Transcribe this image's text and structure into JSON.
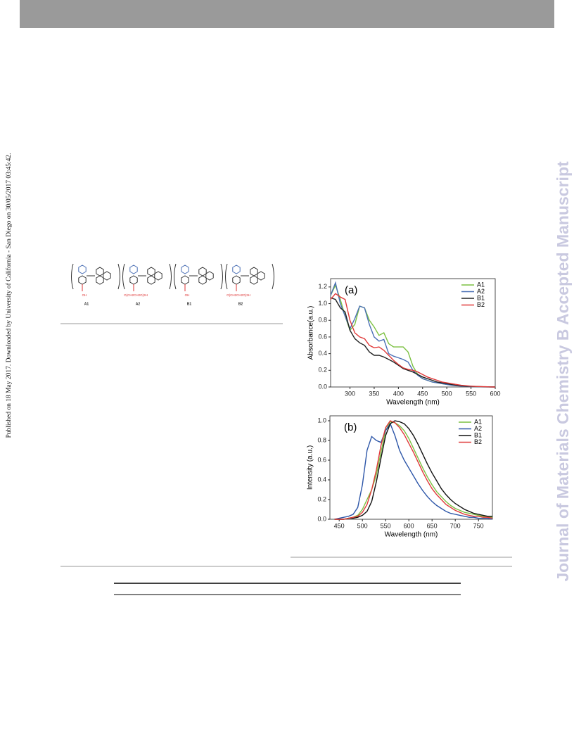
{
  "sidebar_left": "Published on 18 May 2017. Downloaded by University of California - San Diego on 30/05/2017 03:45:42.",
  "watermark": "Journal of Materials Chemistry B Accepted Manuscript",
  "scheme": {
    "labels": [
      "A1",
      "A2",
      "B1",
      "B2"
    ],
    "substituents": [
      "OH",
      "O(CH2CH2O)3H",
      "OH",
      "O(CH2CH2O)3H"
    ]
  },
  "chart_data": [
    {
      "type": "line",
      "panel_label": "(a)",
      "x_label": "Wavelength (nm)",
      "y_label": "Absorbance(a.u.)",
      "legend": "upper right",
      "x": [
        260,
        270,
        280,
        290,
        300,
        310,
        320,
        330,
        340,
        350,
        360,
        370,
        380,
        390,
        400,
        410,
        420,
        430,
        440,
        450,
        460,
        470,
        480,
        490,
        500,
        510,
        520,
        530,
        540,
        550,
        560,
        570,
        580,
        590,
        600
      ],
      "xlim": [
        260,
        600
      ],
      "xticks": [
        300,
        350,
        400,
        450,
        500,
        550,
        600
      ],
      "ylim": [
        0,
        1.3
      ],
      "yticks": [
        {
          "value": 0,
          "label": "0.0"
        },
        0.2,
        0.4,
        0.6,
        0.8,
        {
          "value": 1,
          "label": "1.0"
        },
        1.2
      ],
      "series": [
        {
          "name": "A1",
          "color": "#7cc142",
          "values": [
            1.1,
            1.22,
            1.05,
            0.85,
            0.68,
            0.75,
            0.97,
            0.95,
            0.8,
            0.72,
            0.62,
            0.65,
            0.52,
            0.48,
            0.48,
            0.48,
            0.42,
            0.25,
            0.15,
            0.1,
            0.08,
            0.06,
            0.05,
            0.04,
            0.03,
            0.025,
            0.02,
            0.015,
            0.01,
            0.008,
            0.005,
            0.003,
            0.002,
            0.001,
            0
          ]
        },
        {
          "name": "A2",
          "color": "#4a6fb5",
          "values": [
            1.1,
            1.25,
            1.0,
            0.85,
            0.7,
            0.82,
            0.97,
            0.95,
            0.75,
            0.6,
            0.55,
            0.57,
            0.4,
            0.37,
            0.35,
            0.33,
            0.3,
            0.2,
            0.14,
            0.1,
            0.08,
            0.06,
            0.05,
            0.04,
            0.03,
            0.02,
            0.015,
            0.01,
            0.008,
            0.005,
            0.003,
            0.002,
            0.001,
            0,
            0
          ]
        },
        {
          "name": "B1",
          "color": "#222222",
          "values": [
            1.07,
            1.05,
            0.95,
            0.9,
            0.68,
            0.58,
            0.53,
            0.5,
            0.42,
            0.38,
            0.38,
            0.36,
            0.33,
            0.3,
            0.26,
            0.22,
            0.2,
            0.18,
            0.15,
            0.12,
            0.1,
            0.08,
            0.06,
            0.05,
            0.04,
            0.03,
            0.02,
            0.015,
            0.01,
            0.008,
            0.005,
            0.003,
            0.002,
            0.001,
            0
          ]
        },
        {
          "name": "B2",
          "color": "#e03a3a",
          "values": [
            1.05,
            1.12,
            1.08,
            1.05,
            0.8,
            0.65,
            0.6,
            0.58,
            0.5,
            0.47,
            0.48,
            0.44,
            0.38,
            0.32,
            0.27,
            0.23,
            0.21,
            0.2,
            0.18,
            0.15,
            0.12,
            0.1,
            0.08,
            0.06,
            0.05,
            0.04,
            0.03,
            0.02,
            0.015,
            0.01,
            0.007,
            0.005,
            0.003,
            0.001,
            0
          ]
        }
      ]
    },
    {
      "type": "line",
      "panel_label": "(b)",
      "x_label": "Wavelength (nm)",
      "y_label": "Intensity (a.u.)",
      "legend": "upper right",
      "x": [
        440,
        450,
        460,
        470,
        480,
        490,
        500,
        510,
        520,
        530,
        540,
        550,
        560,
        570,
        580,
        590,
        600,
        610,
        620,
        630,
        640,
        650,
        660,
        670,
        680,
        690,
        700,
        710,
        720,
        730,
        740,
        750,
        760,
        770,
        780
      ],
      "xlim": [
        430,
        780
      ],
      "xticks": [
        450,
        500,
        550,
        600,
        650,
        700,
        750
      ],
      "ylim": [
        0,
        1.05
      ],
      "yticks": [
        {
          "value": 0,
          "label": "0.0"
        },
        0.2,
        0.4,
        0.6,
        0.8,
        {
          "value": 1,
          "label": "1.0"
        }
      ],
      "series": [
        {
          "name": "A1",
          "color": "#7cc142",
          "values": [
            0,
            0,
            0,
            0.01,
            0.02,
            0.04,
            0.1,
            0.2,
            0.3,
            0.45,
            0.68,
            0.9,
            0.99,
            0.98,
            0.95,
            0.9,
            0.82,
            0.72,
            0.62,
            0.52,
            0.43,
            0.35,
            0.28,
            0.23,
            0.18,
            0.14,
            0.11,
            0.09,
            0.07,
            0.06,
            0.05,
            0.04,
            0.03,
            0.02,
            0.02
          ]
        },
        {
          "name": "A2",
          "color": "#2d56a8",
          "values": [
            0,
            0.01,
            0.02,
            0.03,
            0.05,
            0.12,
            0.35,
            0.7,
            0.84,
            0.8,
            0.78,
            0.9,
            0.97,
            0.85,
            0.7,
            0.6,
            0.52,
            0.44,
            0.36,
            0.29,
            0.23,
            0.18,
            0.14,
            0.11,
            0.08,
            0.06,
            0.05,
            0.04,
            0.03,
            0.02,
            0.02,
            0.01,
            0.01,
            0.01,
            0
          ]
        },
        {
          "name": "B1",
          "color": "#111111",
          "values": [
            0,
            0,
            0,
            0.01,
            0.01,
            0.02,
            0.04,
            0.08,
            0.18,
            0.38,
            0.62,
            0.85,
            0.97,
            1.0,
            0.99,
            0.97,
            0.92,
            0.85,
            0.76,
            0.66,
            0.56,
            0.47,
            0.39,
            0.31,
            0.25,
            0.2,
            0.16,
            0.13,
            0.1,
            0.08,
            0.06,
            0.05,
            0.04,
            0.03,
            0.03
          ]
        },
        {
          "name": "B2",
          "color": "#e03a3a",
          "values": [
            0,
            0,
            0,
            0.01,
            0.02,
            0.03,
            0.07,
            0.15,
            0.3,
            0.5,
            0.75,
            0.93,
            1.0,
            0.98,
            0.93,
            0.86,
            0.77,
            0.68,
            0.58,
            0.48,
            0.39,
            0.31,
            0.25,
            0.2,
            0.15,
            0.12,
            0.09,
            0.07,
            0.05,
            0.04,
            0.03,
            0.03,
            0.02,
            0.02,
            0.01
          ]
        }
      ]
    }
  ]
}
